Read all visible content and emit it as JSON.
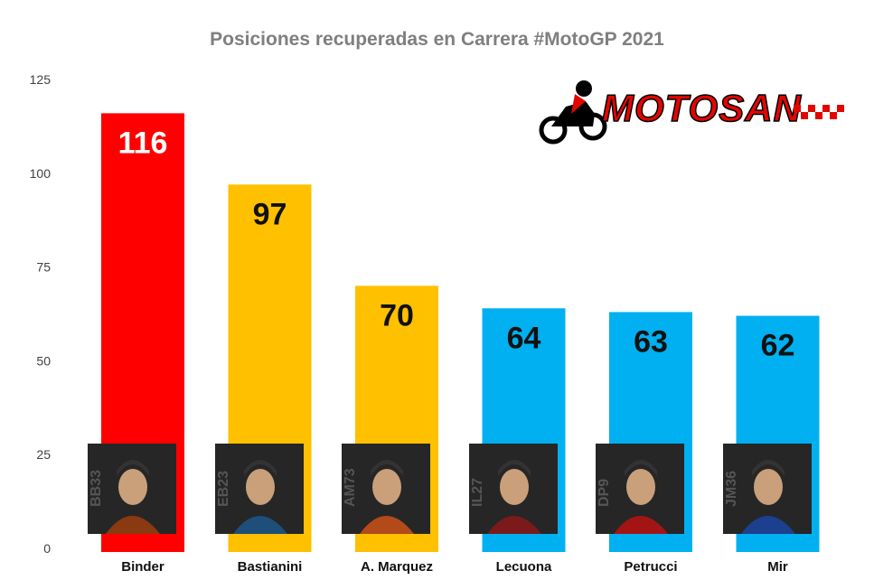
{
  "chart_data": {
    "type": "bar",
    "title": "Posiciones recuperadas en Carrera #MotoGP 2021",
    "categories": [
      "Binder",
      "Bastianini",
      "A. Marquez",
      "Lecuona",
      "Petrucci",
      "Mir"
    ],
    "values": [
      116,
      97,
      70,
      64,
      63,
      62
    ],
    "bar_colors": [
      "#ff0000",
      "#ffc000",
      "#ffc000",
      "#00b0f0",
      "#00b0f0",
      "#00b0f0"
    ],
    "value_label_colors": [
      "#ffffff",
      "#111111",
      "#111111",
      "#111111",
      "#111111",
      "#111111"
    ],
    "rider_numbers": [
      "BB33",
      "EB23",
      "AM73",
      "IL27",
      "DP9",
      "JM36"
    ],
    "ylim": [
      0,
      125
    ],
    "yticks": [
      0,
      25,
      50,
      75,
      100,
      125
    ],
    "grid": false,
    "legend": "none"
  },
  "logo": {
    "text": "MOTOSAN",
    "icon": "motorcycle-rider-icon"
  }
}
